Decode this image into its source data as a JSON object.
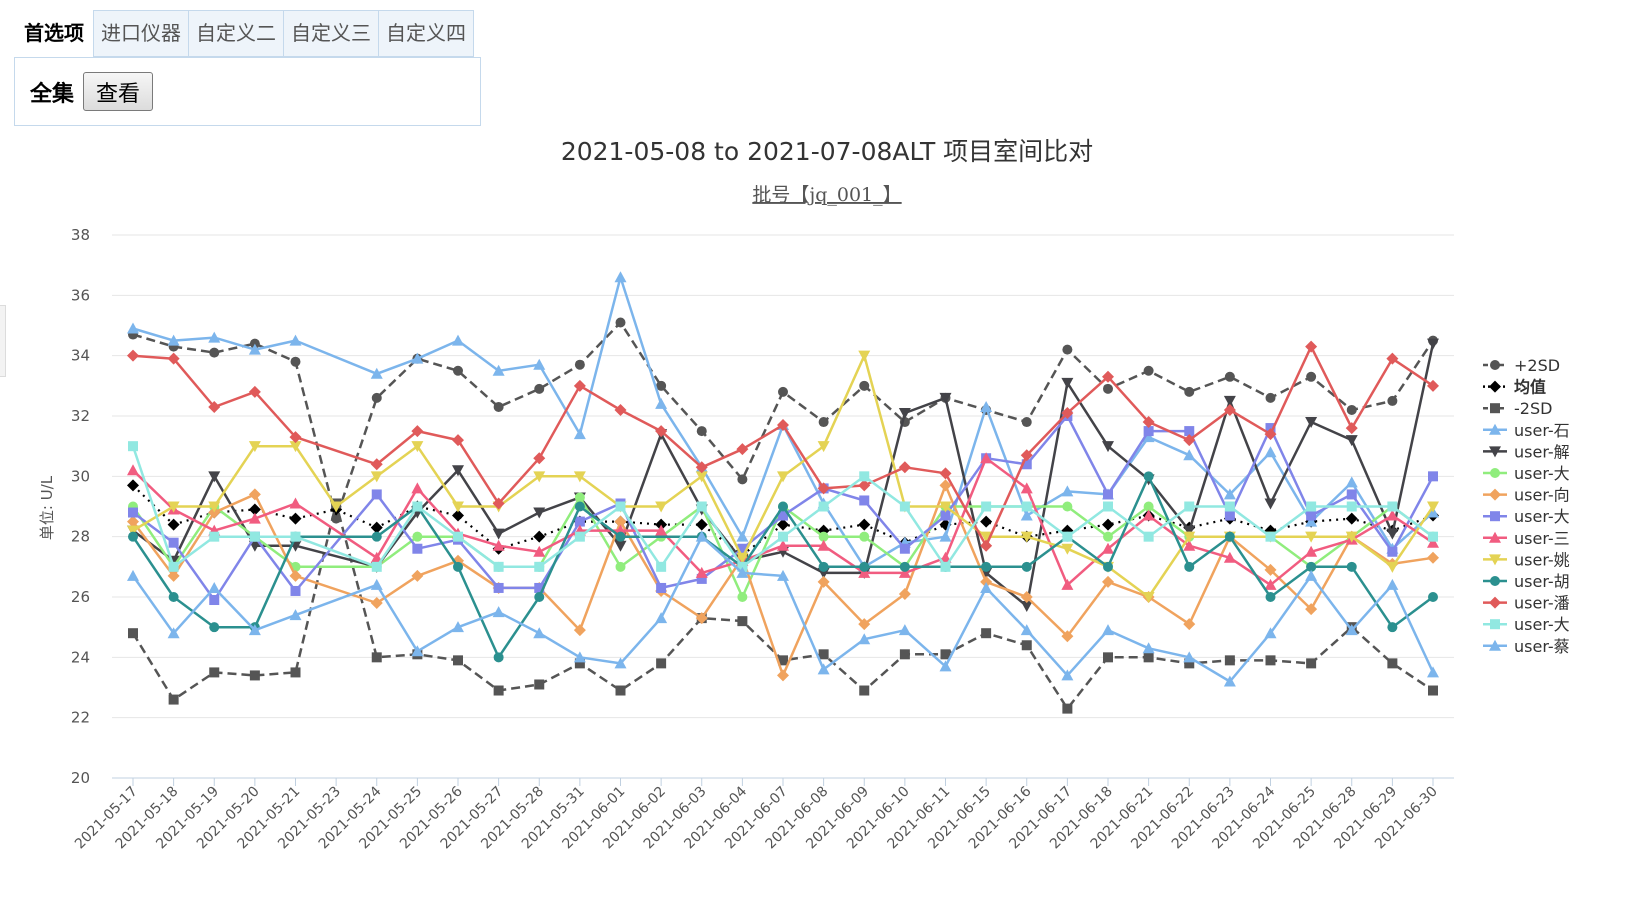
{
  "tabs": [
    {
      "label": "首选项",
      "active": true
    },
    {
      "label": "进口仪器",
      "active": false
    },
    {
      "label": "自定义二",
      "active": false
    },
    {
      "label": "自定义三",
      "active": false
    },
    {
      "label": "自定义四",
      "active": false
    }
  ],
  "panel": {
    "set_label": "全集",
    "view_button": "查看"
  },
  "chart_data": {
    "type": "line",
    "title": "2021-05-08 to 2021-07-08ALT 项目室间比对",
    "subtitle": "批号【jq_001_】",
    "ylabel": "单位: U/L",
    "xlabel": "",
    "ylim": [
      20,
      38
    ],
    "yticks": [
      20,
      22,
      24,
      26,
      28,
      30,
      32,
      34,
      36,
      38
    ],
    "grid": true,
    "legend_position": "right",
    "categories": [
      "2021-05-17",
      "2021-05-18",
      "2021-05-19",
      "2021-05-20",
      "2021-05-21",
      "2021-05-23",
      "2021-05-24",
      "2021-05-25",
      "2021-05-26",
      "2021-05-27",
      "2021-05-28",
      "2021-05-31",
      "2021-06-01",
      "2021-06-02",
      "2021-06-03",
      "2021-06-04",
      "2021-06-07",
      "2021-06-08",
      "2021-06-09",
      "2021-06-10",
      "2021-06-11",
      "2021-06-15",
      "2021-06-16",
      "2021-06-17",
      "2021-06-18",
      "2021-06-21",
      "2021-06-22",
      "2021-06-23",
      "2021-06-24",
      "2021-06-25",
      "2021-06-28",
      "2021-06-29",
      "2021-06-30"
    ],
    "series": [
      {
        "name": "+2SD",
        "color": "#555555",
        "marker": "circle",
        "dash": "dashed",
        "values": [
          34.7,
          34.3,
          34.1,
          34.4,
          33.8,
          28.6,
          32.6,
          33.9,
          33.5,
          32.3,
          32.9,
          33.7,
          35.1,
          33.0,
          31.5,
          29.9,
          32.8,
          31.8,
          33.0,
          31.8,
          32.6,
          32.2,
          31.8,
          34.2,
          32.9,
          33.5,
          32.8,
          33.3,
          32.6,
          33.3,
          32.2,
          32.5,
          34.5
        ]
      },
      {
        "name": "均值",
        "color": "#000000",
        "marker": "diamond",
        "dash": "dotted",
        "values": [
          29.7,
          28.4,
          28.8,
          28.9,
          28.6,
          28.9,
          28.3,
          29.0,
          28.7,
          27.6,
          28.0,
          28.5,
          28.5,
          28.4,
          28.4,
          27.4,
          28.4,
          28.2,
          28.4,
          27.8,
          28.4,
          28.5,
          28.0,
          28.2,
          28.4,
          28.7,
          28.3,
          28.6,
          28.2,
          28.5,
          28.6,
          28.2,
          28.7
        ]
      },
      {
        "name": "-2SD",
        "color": "#555555",
        "marker": "square",
        "dash": "dashed",
        "values": [
          24.8,
          22.6,
          23.5,
          23.4,
          23.5,
          29.1,
          24.0,
          24.1,
          23.9,
          22.9,
          23.1,
          23.8,
          22.9,
          23.8,
          25.3,
          25.2,
          23.9,
          24.1,
          22.9,
          24.1,
          24.1,
          24.8,
          24.4,
          22.3,
          24.0,
          24.0,
          23.8,
          23.9,
          23.9,
          23.8,
          25.0,
          23.8,
          22.9
        ]
      },
      {
        "name": "user-石",
        "color": "#7cb5ec",
        "marker": "triangle",
        "dash": "solid",
        "values": [
          34.9,
          34.5,
          34.6,
          34.2,
          34.5,
          null,
          33.4,
          33.9,
          34.5,
          33.5,
          33.7,
          31.4,
          36.6,
          32.4,
          30.3,
          28.0,
          31.7,
          29.1,
          27.0,
          27.8,
          28.0,
          32.3,
          28.7,
          29.5,
          29.4,
          31.3,
          30.7,
          29.4,
          30.8,
          28.5,
          29.8,
          27.6,
          28.8
        ]
      },
      {
        "name": "user-解",
        "color": "#434348",
        "marker": "triangle-down",
        "dash": "solid",
        "values": [
          28.2,
          27.2,
          30.0,
          27.7,
          27.7,
          null,
          27.0,
          28.8,
          30.2,
          28.1,
          28.8,
          29.3,
          27.7,
          31.4,
          28.9,
          27.2,
          27.5,
          26.8,
          26.8,
          32.1,
          32.6,
          26.8,
          25.7,
          33.1,
          31.0,
          29.9,
          28.2,
          32.5,
          29.1,
          31.8,
          31.2,
          28.1,
          34.4
        ]
      },
      {
        "name": "user-大",
        "color": "#90ed7d",
        "marker": "circle",
        "dash": "solid",
        "values": [
          29.0,
          27.0,
          29.0,
          28.0,
          27.0,
          null,
          27.0,
          28.0,
          28.0,
          27.0,
          27.0,
          29.3,
          27.0,
          28.0,
          29.0,
          26.0,
          29.0,
          28.0,
          28.0,
          27.0,
          29.0,
          29.0,
          29.0,
          29.0,
          28.0,
          29.0,
          28.0,
          28.0,
          28.0,
          27.0,
          28.0,
          29.0,
          28.0
        ]
      },
      {
        "name": "user-向",
        "color": "#f0a35e",
        "marker": "diamond",
        "dash": "solid",
        "values": [
          28.5,
          26.7,
          28.8,
          29.4,
          26.7,
          null,
          25.8,
          26.7,
          27.2,
          26.3,
          26.3,
          24.9,
          28.5,
          26.2,
          25.3,
          27.3,
          23.4,
          26.5,
          25.1,
          26.1,
          29.7,
          26.5,
          26.0,
          24.7,
          26.5,
          26.0,
          25.1,
          28.0,
          26.9,
          25.6,
          28.0,
          27.1,
          27.3
        ]
      },
      {
        "name": "user-大",
        "color": "#8085e9",
        "marker": "square",
        "dash": "solid",
        "values": [
          28.8,
          27.8,
          25.9,
          28.0,
          26.2,
          null,
          29.4,
          27.6,
          27.9,
          26.3,
          26.3,
          28.5,
          29.1,
          26.3,
          26.6,
          27.6,
          28.7,
          29.6,
          29.2,
          27.6,
          28.7,
          30.6,
          30.4,
          32.0,
          29.4,
          31.5,
          31.5,
          28.7,
          31.6,
          28.7,
          29.4,
          27.5,
          30.0
        ]
      },
      {
        "name": "user-三",
        "color": "#f15c80",
        "marker": "triangle",
        "dash": "solid",
        "values": [
          30.2,
          28.9,
          28.2,
          28.6,
          29.1,
          null,
          27.3,
          29.6,
          28.1,
          27.7,
          27.5,
          28.2,
          28.2,
          28.2,
          26.8,
          27.2,
          27.7,
          27.7,
          26.8,
          26.8,
          27.3,
          30.6,
          29.6,
          26.4,
          27.6,
          28.7,
          27.7,
          27.3,
          26.4,
          27.5,
          27.9,
          28.7,
          27.8
        ]
      },
      {
        "name": "user-姚",
        "color": "#e4d354",
        "marker": "triangle-down",
        "dash": "solid",
        "values": [
          28.2,
          29.0,
          29.0,
          31.0,
          31.0,
          29.0,
          30.0,
          31.0,
          29.0,
          29.0,
          30.0,
          30.0,
          29.0,
          29.0,
          30.0,
          27.3,
          30.0,
          31.0,
          34.0,
          29.0,
          29.0,
          28.0,
          28.0,
          27.6,
          27.0,
          26.0,
          28.0,
          28.0,
          28.0,
          28.0,
          28.0,
          27.0,
          29.0
        ]
      },
      {
        "name": "user-胡",
        "color": "#2b908f",
        "marker": "circle",
        "dash": "solid",
        "values": [
          28.0,
          26.0,
          25.0,
          25.0,
          28.0,
          null,
          28.0,
          29.0,
          27.0,
          24.0,
          26.0,
          29.0,
          28.0,
          null,
          28.0,
          27.0,
          29.0,
          27.0,
          27.0,
          27.0,
          27.0,
          27.0,
          27.0,
          28.0,
          27.0,
          30.0,
          27.0,
          28.0,
          26.0,
          27.0,
          27.0,
          25.0,
          26.0
        ]
      },
      {
        "name": "user-潘",
        "color": "#e05a5a",
        "marker": "diamond",
        "dash": "solid",
        "values": [
          34.0,
          33.9,
          32.3,
          32.8,
          31.3,
          null,
          30.4,
          31.5,
          31.2,
          29.1,
          30.6,
          33.0,
          32.2,
          31.5,
          30.3,
          30.9,
          31.7,
          29.6,
          29.7,
          30.3,
          30.1,
          27.7,
          30.7,
          32.1,
          33.3,
          31.8,
          31.2,
          32.2,
          31.4,
          34.3,
          31.6,
          33.9,
          33.0
        ]
      },
      {
        "name": "user-大",
        "color": "#91e8e1",
        "marker": "square",
        "dash": "solid",
        "values": [
          31.0,
          27.0,
          28.0,
          28.0,
          28.0,
          null,
          27.0,
          29.0,
          28.0,
          27.0,
          27.0,
          28.0,
          29.0,
          27.0,
          29.0,
          27.0,
          28.0,
          29.0,
          30.0,
          29.0,
          27.0,
          29.0,
          29.0,
          28.0,
          29.0,
          28.0,
          29.0,
          29.0,
          28.0,
          29.0,
          29.0,
          29.0,
          28.0
        ]
      },
      {
        "name": "user-蔡",
        "color": "#7cb5ec",
        "marker": "triangle",
        "dash": "solid",
        "values": [
          26.7,
          24.8,
          26.3,
          24.9,
          25.4,
          null,
          26.4,
          24.2,
          25.0,
          25.5,
          24.8,
          24.0,
          23.8,
          25.3,
          28.0,
          26.8,
          26.7,
          23.6,
          24.6,
          24.9,
          23.7,
          26.3,
          24.9,
          23.4,
          24.9,
          24.3,
          24.0,
          23.2,
          24.8,
          26.7,
          24.9,
          26.4,
          23.5
        ]
      }
    ]
  }
}
